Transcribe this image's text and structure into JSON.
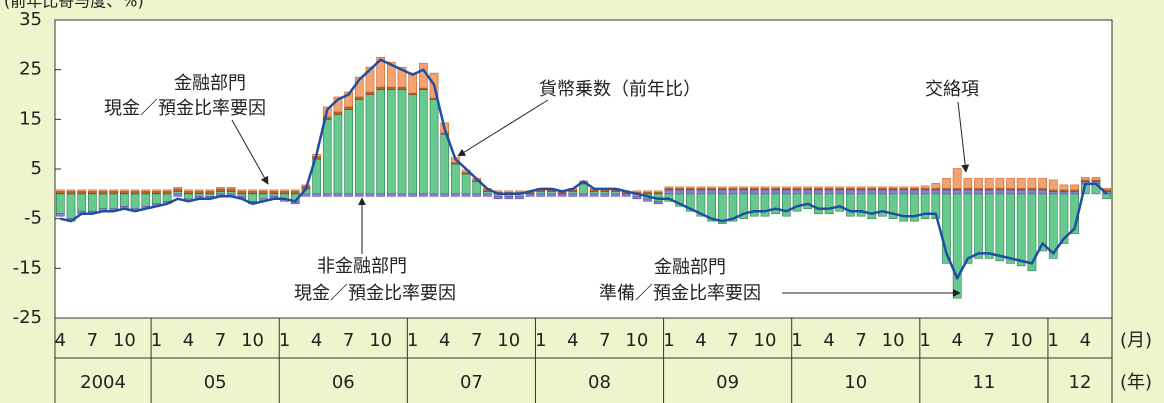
{
  "chart_data": {
    "type": "bar",
    "y_axis_label": "(前年比寄与度、%)",
    "x_unit_month": "(月)",
    "x_unit_year": "(年)",
    "categories": [
      "4",
      null,
      null,
      "7",
      null,
      null,
      "10",
      null,
      null,
      "1",
      null,
      null,
      "4",
      null,
      null,
      "7",
      null,
      null,
      "10",
      null,
      null,
      "1",
      null,
      null,
      "4",
      null,
      null,
      "7",
      null,
      null,
      "10",
      null,
      null,
      "1",
      null,
      null,
      "4",
      null,
      null,
      "7",
      null,
      null,
      "10",
      null,
      null,
      "1",
      null,
      null,
      "4",
      null,
      null,
      "7",
      null,
      null,
      "10",
      null,
      null,
      "1",
      null,
      null,
      "4",
      null,
      null,
      "7",
      null,
      null,
      "10",
      null,
      null,
      "1",
      null,
      null,
      "4",
      null,
      null,
      "7",
      null,
      null,
      "10",
      null,
      null,
      "1",
      null,
      null,
      "4",
      null,
      null,
      "7",
      null,
      null,
      "10",
      null,
      null,
      "1",
      null,
      null,
      "4",
      null,
      null
    ],
    "year_labels": [
      "2004",
      "05",
      "06",
      "07",
      "08",
      "09",
      "10",
      "11",
      "12"
    ],
    "series": [
      {
        "color": "#66c98e",
        "edge": "#2f7d4e",
        "values": [
          -4,
          -5,
          -3.5,
          -3.5,
          -3,
          -3,
          -2.5,
          -3,
          -2.5,
          -2,
          -1.5,
          0.5,
          -1,
          -0.5,
          -0.5,
          0.5,
          0.5,
          -0.5,
          -1.5,
          -1,
          -0.5,
          -1,
          -1.5,
          1,
          7,
          15,
          16,
          17,
          19,
          20,
          21,
          21,
          21,
          20,
          21,
          19,
          12,
          6,
          4,
          2.5,
          0.5,
          -0.5,
          -0.5,
          -0.5,
          0,
          0.5,
          0.5,
          0,
          0.5,
          2,
          0.5,
          0.5,
          0.5,
          0,
          -0.5,
          -1,
          -1.5,
          -1.5,
          -2.5,
          -3.5,
          -4.5,
          -5.5,
          -6,
          -5.5,
          -5,
          -4.5,
          -4.5,
          -4,
          -4.5,
          -3.5,
          -3,
          -4,
          -4,
          -3.5,
          -4.5,
          -4.5,
          -5,
          -4.5,
          -5,
          -5.5,
          -5.5,
          -5,
          -5,
          -14,
          -21,
          -14,
          -13,
          -13,
          -13.5,
          -14,
          -14.5,
          -15.5,
          -11.5,
          -13,
          -10,
          -8,
          2,
          2,
          -1
        ]
      },
      {
        "color": "#8d7fd6",
        "edge": "#5a4ea8",
        "values": [
          -0.5,
          -0.5,
          -0.5,
          -0.5,
          -0.5,
          -0.5,
          -0.5,
          -0.5,
          -0.5,
          -0.5,
          -0.5,
          -0.5,
          -0.5,
          -0.5,
          -0.5,
          -0.5,
          -0.5,
          -0.5,
          -0.5,
          -0.5,
          -0.5,
          -0.5,
          -0.5,
          -0.5,
          -0.5,
          -0.5,
          -0.5,
          -0.5,
          -0.5,
          -0.5,
          -0.5,
          -0.5,
          -0.5,
          -0.5,
          -0.5,
          -0.5,
          -0.5,
          -0.5,
          -0.5,
          -0.5,
          -0.5,
          -0.5,
          -0.5,
          -0.5,
          -0.5,
          -0.5,
          -0.5,
          -0.5,
          -0.5,
          -0.5,
          -0.5,
          -0.5,
          -0.5,
          -0.5,
          -0.5,
          -0.5,
          -0.5,
          0.8,
          0.8,
          0.8,
          0.8,
          0.8,
          0.8,
          0.8,
          0.8,
          0.8,
          0.8,
          0.8,
          0.8,
          0.8,
          0.8,
          0.8,
          0.8,
          0.8,
          0.8,
          0.8,
          0.8,
          0.8,
          0.8,
          0.8,
          0.8,
          0.8,
          0.8,
          0.8,
          0.8,
          0.8,
          0.8,
          0.8,
          0.8,
          0.8,
          0.8,
          0.8,
          0.8,
          0.5,
          0.5,
          0.5,
          0.5,
          0.5,
          0.5
        ]
      },
      {
        "color": "#b8652f",
        "edge": "#7a3e16",
        "values": [
          0.5,
          0.5,
          0.5,
          0.5,
          0.5,
          0.5,
          0.5,
          0.5,
          0.5,
          0.5,
          0.5,
          0.5,
          0.5,
          0.5,
          0.5,
          0.5,
          0.5,
          0.5,
          0.5,
          0.5,
          0.5,
          0.5,
          0.5,
          0.5,
          0.5,
          0.5,
          0.5,
          0.5,
          0.5,
          0.5,
          0.5,
          0.5,
          0.5,
          0.3,
          0.3,
          0.3,
          0.3,
          0.3,
          0.3,
          0.3,
          0.3,
          0.3,
          0.3,
          0.3,
          0.3,
          0.3,
          0.3,
          0.3,
          0.3,
          0.3,
          0.3,
          0.3,
          0.3,
          0.3,
          0.3,
          0.3,
          0.3,
          0.3,
          0.3,
          0.3,
          0.3,
          0.3,
          0.3,
          0.3,
          0.3,
          0.3,
          0.3,
          0.3,
          0.3,
          0.3,
          0.3,
          0.3,
          0.3,
          0.3,
          0.3,
          0.3,
          0.3,
          0.3,
          0.3,
          0.3,
          0.3,
          0.3,
          0.3,
          0.3,
          0.3,
          0.3,
          0.3,
          0.3,
          0.3,
          0.3,
          0.3,
          0.3,
          0.3,
          0.3,
          0.3,
          0.3,
          0.3,
          0.3,
          0.3
        ]
      },
      {
        "color": "#f5a271",
        "edge": "#c8642c",
        "values": [
          0.3,
          0.3,
          0.3,
          0.3,
          0.3,
          0.3,
          0.3,
          0.3,
          0.3,
          0.3,
          0.3,
          0.3,
          0.3,
          0.3,
          0.3,
          0.3,
          0.3,
          0.3,
          0.3,
          0.3,
          0.3,
          0.3,
          0.3,
          0.3,
          0.5,
          2,
          3,
          3,
          4,
          5,
          6,
          5,
          4,
          4,
          5,
          5,
          2,
          1,
          0.5,
          0.3,
          0.3,
          0.3,
          0.3,
          0.3,
          0.3,
          0.3,
          0.3,
          0.3,
          0.3,
          0.3,
          0.3,
          0.3,
          0.3,
          0.3,
          0.3,
          0.3,
          0.3,
          0.3,
          0.3,
          0.3,
          0.3,
          0.3,
          0.3,
          0.3,
          0.3,
          0.3,
          0.3,
          0.3,
          0.3,
          0.3,
          0.3,
          0.3,
          0.3,
          0.3,
          0.3,
          0.3,
          0.3,
          0.3,
          0.3,
          0.3,
          0.3,
          0.5,
          1,
          2,
          4,
          2,
          2,
          2,
          2,
          2,
          2,
          2,
          2,
          2,
          1,
          1,
          0.5,
          0.5,
          0.3
        ]
      }
    ],
    "line": {
      "color": "#1f4ea3",
      "values": [
        -5,
        -5.5,
        -4,
        -4,
        -3.5,
        -3.5,
        -3,
        -3.5,
        -3,
        -2.5,
        -2,
        -1,
        -1.5,
        -1,
        -1,
        -0.5,
        -0.5,
        -1,
        -2,
        -1.5,
        -1,
        -1,
        -1.5,
        1,
        8,
        17,
        19,
        20,
        23,
        25,
        27,
        26,
        25,
        24,
        25,
        22,
        13,
        7,
        5,
        3,
        1,
        0,
        0,
        0,
        0.5,
        1,
        1,
        0.5,
        1,
        2.5,
        1,
        1,
        1,
        0.5,
        0,
        -0.5,
        -1,
        -1,
        -2,
        -3,
        -4,
        -5,
        -5.5,
        -5,
        -4,
        -3.5,
        -3.5,
        -3,
        -3.5,
        -2.5,
        -2,
        -3,
        -3,
        -2.5,
        -3.5,
        -3.5,
        -4,
        -3.5,
        -4,
        -4.5,
        -4.5,
        -4,
        -4,
        -12,
        -17,
        -13,
        -12,
        -12,
        -12.5,
        -13,
        -13.5,
        -14,
        -10,
        -12,
        -9,
        -7,
        2,
        2,
        0
      ]
    },
    "ylim": [
      -25,
      35
    ],
    "yticks": [
      -25,
      -15,
      -5,
      5,
      15,
      25,
      35
    ],
    "annotations": [
      {
        "lines": [
          "金融部門",
          "現金／預金比率要因"
        ]
      },
      {
        "lines": [
          "貨幣乗数（前年比）"
        ]
      },
      {
        "lines": [
          "交絡項"
        ]
      },
      {
        "lines": [
          "非金融部門",
          "現金／預金比率要因"
        ]
      },
      {
        "lines": [
          "金融部門",
          "準備／預金比率要因"
        ]
      }
    ]
  }
}
